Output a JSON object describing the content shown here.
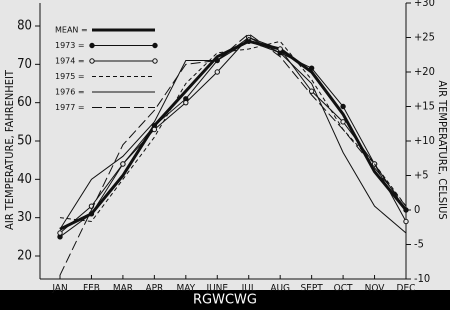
{
  "chart_data": {
    "type": "line",
    "y_label": "AIR TEMPERATURE, FAHRENHEIT",
    "y2_label": "AIR TEMPERATURE, CELSIUS",
    "categories": [
      "JAN",
      "FEB",
      "MAR",
      "APR",
      "MAY",
      "JUNE",
      "JUL",
      "AUG",
      "SEPT",
      "OCT",
      "NOV",
      "DEC"
    ],
    "ylim": [
      14,
      86
    ],
    "yticks": [
      20,
      30,
      40,
      50,
      60,
      70,
      80
    ],
    "y2lim": [
      -10,
      30
    ],
    "y2ticks": [
      {
        "value": 30,
        "label": "+30"
      },
      {
        "value": 25,
        "label": "+25"
      },
      {
        "value": 20,
        "label": "+20"
      },
      {
        "value": 15,
        "label": "+15"
      },
      {
        "value": 10,
        "label": "+10"
      },
      {
        "value": 5,
        "label": "+5"
      },
      0,
      -5,
      -10
    ],
    "series": [
      {
        "name": "MEAN =",
        "color": "#111111",
        "width": 3,
        "dash": "none",
        "marker": "none",
        "values": [
          27,
          31,
          41,
          54,
          63,
          72,
          76,
          74,
          68,
          57,
          42,
          32
        ]
      },
      {
        "name": "1973 =",
        "color": "#111111",
        "width": 1,
        "dash": "none",
        "marker": "filled",
        "values": [
          25,
          31,
          44,
          54,
          61,
          71,
          76,
          73,
          69,
          59,
          44,
          32
        ]
      },
      {
        "name": "1974 =",
        "color": "#111111",
        "width": 1,
        "dash": "none",
        "marker": "open",
        "values": [
          26,
          33,
          44,
          53,
          60,
          68,
          77,
          74,
          63,
          55,
          44,
          29
        ]
      },
      {
        "name": "1975 =",
        "color": "#111111",
        "width": 1,
        "dash": "4 3",
        "marker": "none",
        "values": [
          30,
          29,
          40,
          51,
          65,
          73,
          74,
          76,
          66,
          53,
          44,
          33
        ]
      },
      {
        "name": "1976 =",
        "color": "#111111",
        "width": 1,
        "dash": "none",
        "marker": "none",
        "values": [
          27,
          40,
          46,
          55,
          71,
          71,
          77,
          73,
          65,
          47,
          33,
          26
        ]
      },
      {
        "name": "1977 =",
        "color": "#111111",
        "width": 1,
        "dash": "10 4",
        "marker": "none",
        "values": [
          15,
          32,
          49,
          58,
          70,
          71,
          78,
          72,
          62,
          53,
          43,
          33
        ]
      }
    ],
    "watermark": "RGWCWG"
  }
}
